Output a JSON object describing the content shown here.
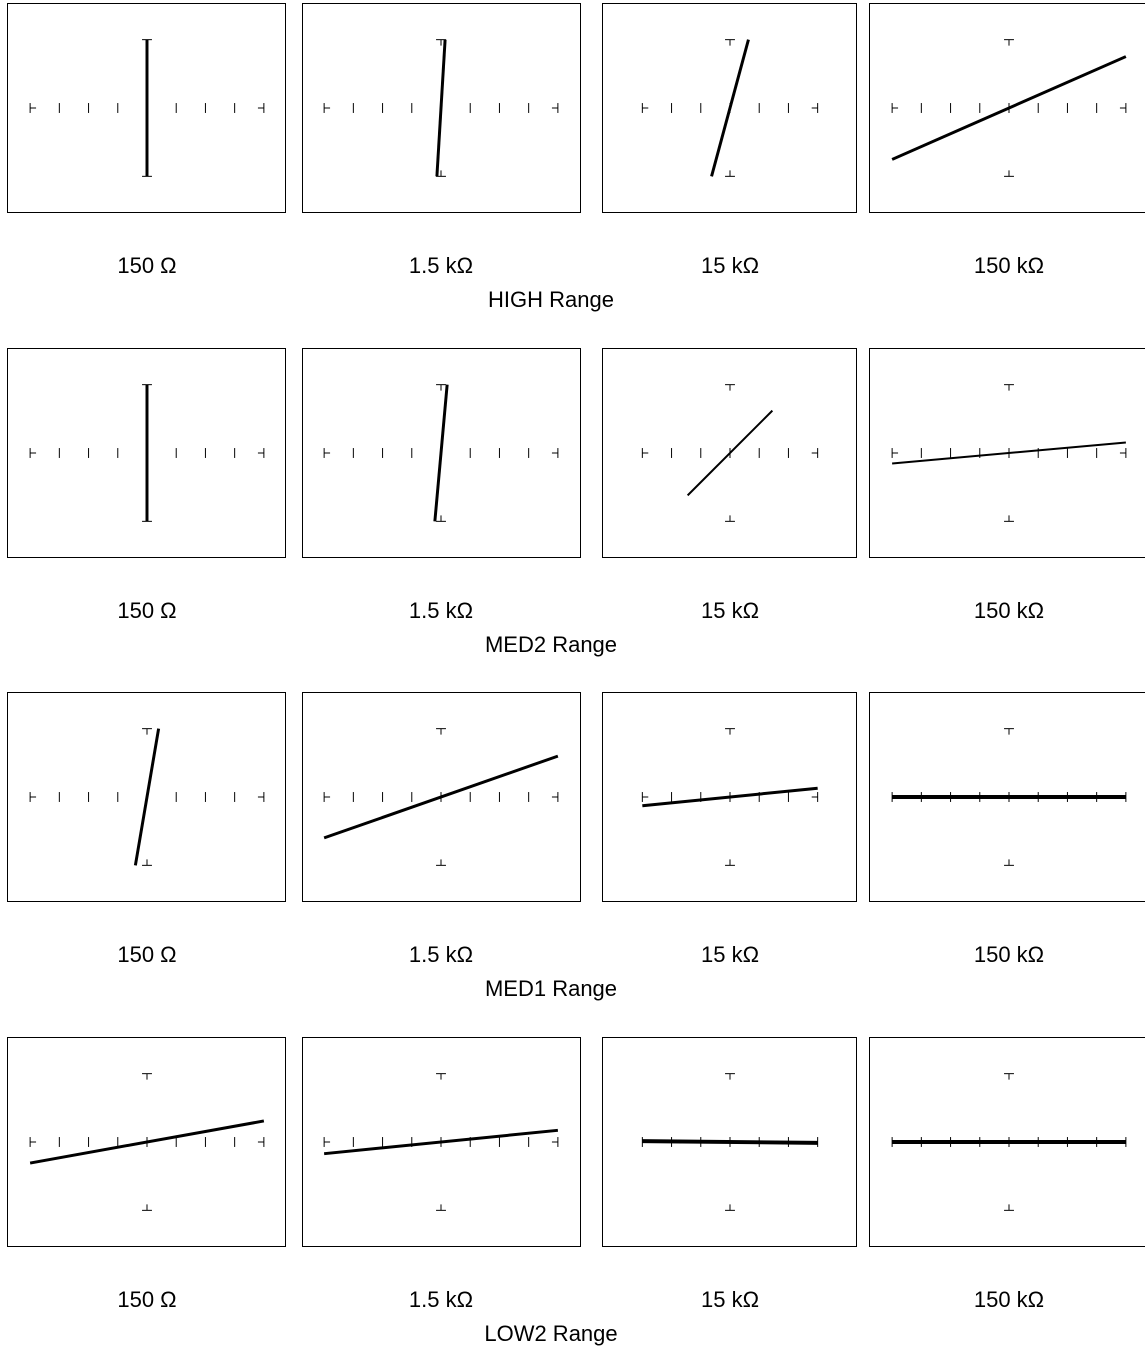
{
  "rows": [
    {
      "range_title": "HIGH Range",
      "panels": [
        {
          "label": "150 Ω",
          "trace": {
            "dx": 0.0,
            "dy": 1.0,
            "weight": "heavy"
          }
        },
        {
          "label": "1.5 kΩ",
          "trace": {
            "dx": 0.06,
            "dy": 1.0,
            "weight": "heavy"
          }
        },
        {
          "label": "15 kΩ",
          "trace": {
            "dx": 0.27,
            "dy": 1.0,
            "weight": "heavy"
          }
        },
        {
          "label": "150 kΩ",
          "trace": {
            "dx": 1.0,
            "dy": 0.44,
            "weight": "heavy"
          }
        }
      ]
    },
    {
      "range_title": "MED2 Range",
      "panels": [
        {
          "label": "150 Ω",
          "trace": {
            "dx": 0.0,
            "dy": 1.0,
            "weight": "heavy"
          }
        },
        {
          "label": "1.5 kΩ",
          "trace": {
            "dx": 0.09,
            "dy": 1.0,
            "weight": "heavy"
          }
        },
        {
          "label": "15 kΩ",
          "trace": {
            "dx": 1.0,
            "dy": 1.0,
            "weight": "thin"
          }
        },
        {
          "label": "150 kΩ",
          "trace": {
            "dx": 1.0,
            "dy": 0.09,
            "weight": "thin"
          }
        }
      ]
    },
    {
      "range_title": "MED1 Range",
      "panels": [
        {
          "label": "150 Ω",
          "trace": {
            "dx": 0.17,
            "dy": 1.0,
            "weight": "heavy"
          }
        },
        {
          "label": "1.5 kΩ",
          "trace": {
            "dx": 1.0,
            "dy": 0.35,
            "weight": "heavy"
          }
        },
        {
          "label": "15 kΩ",
          "trace": {
            "dx": 1.0,
            "dy": 0.1,
            "weight": "heavy"
          }
        },
        {
          "label": "150 kΩ",
          "trace": {
            "dx": 1.0,
            "dy": 0.0,
            "weight": "thick"
          }
        }
      ]
    },
    {
      "range_title": "LOW2 Range",
      "panels": [
        {
          "label": "150 Ω",
          "trace": {
            "dx": 1.0,
            "dy": 0.18,
            "weight": "heavy"
          }
        },
        {
          "label": "1.5 kΩ",
          "trace": {
            "dx": 1.0,
            "dy": 0.1,
            "weight": "heavy"
          }
        },
        {
          "label": "15 kΩ",
          "trace": {
            "dx": 1.0,
            "dy": -0.01,
            "weight": "thick"
          }
        },
        {
          "label": "150 kΩ",
          "trace": {
            "dx": 1.0,
            "dy": 0.0,
            "weight": "thick"
          }
        }
      ]
    }
  ]
}
